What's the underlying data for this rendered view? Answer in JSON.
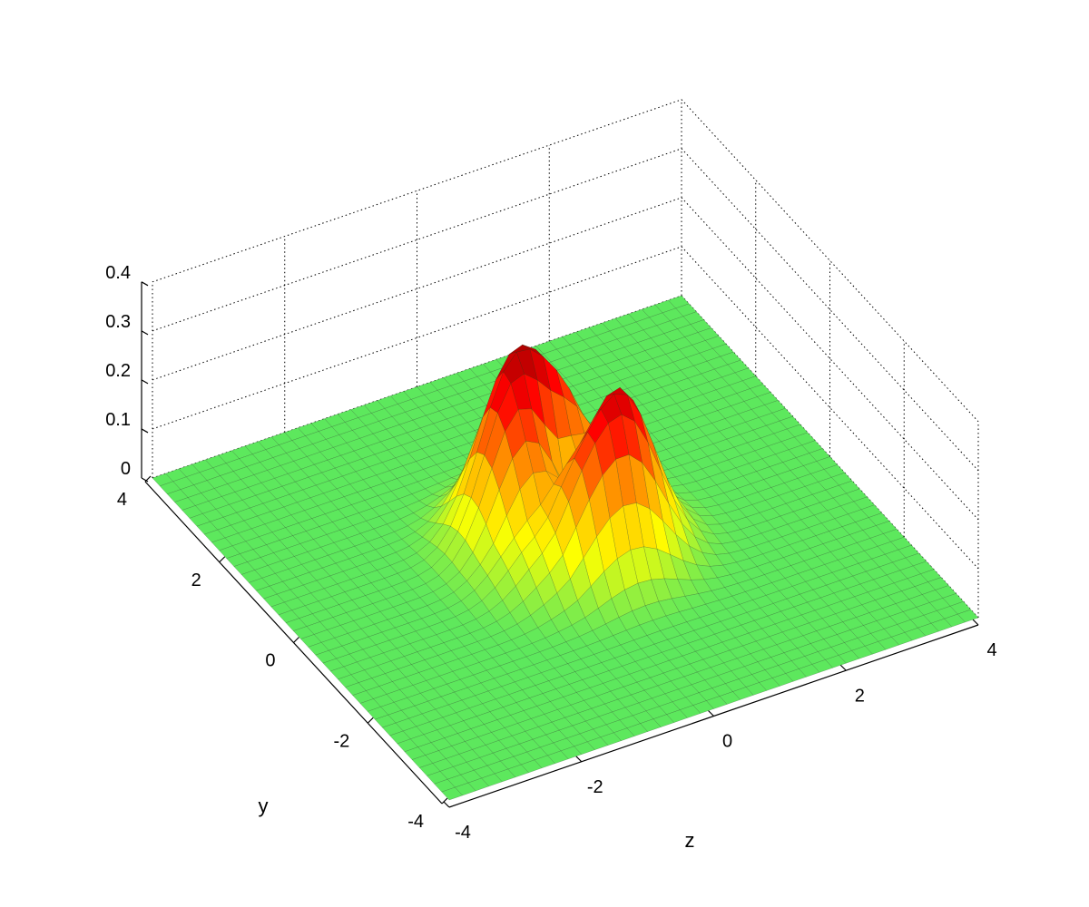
{
  "chart_data": {
    "type": "surface",
    "title": "",
    "xlabel": "z",
    "ylabel": "y",
    "zlabel": "",
    "xlim": [
      -4,
      4
    ],
    "ylim": [
      -4,
      4
    ],
    "zlim": [
      0,
      0.4
    ],
    "xticks": [
      "-4",
      "-2",
      "0",
      "2",
      "4"
    ],
    "yticks": [
      "-4",
      "-2",
      "0",
      "2",
      "4"
    ],
    "zticks": [
      "0",
      "0.1",
      "0.2",
      "0.3",
      "0.4"
    ],
    "grid": true,
    "colormap": [
      "#5de85d",
      "#ffff00",
      "#ff9900",
      "#ff0000",
      "#800000"
    ],
    "surface": {
      "shape": "ring-of-two-gaussian-lobes",
      "ring_radius": 0.8,
      "ring_width": 0.9,
      "lobe1": {
        "x": -0.25,
        "y": 0.55,
        "peak": 0.38
      },
      "lobe2": {
        "x": 0.4,
        "y": -0.5,
        "peak": 0.35
      },
      "grid_step": 0.1
    }
  }
}
